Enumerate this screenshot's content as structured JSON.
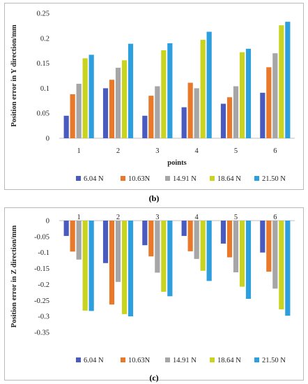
{
  "captions": {
    "b": "(b)",
    "c": "(c)"
  },
  "chart_data": [
    {
      "id": "b",
      "type": "bar",
      "categories": [
        "1",
        "2",
        "3",
        "4",
        "5",
        "6"
      ],
      "xlabel": "points",
      "ylabel": "Position error in Y direction/mm",
      "ylim": [
        0,
        0.25
      ],
      "yticks": [
        0,
        0.05,
        0.1,
        0.15,
        0.2,
        0.25
      ],
      "ytick_labels": [
        "0",
        "0.05",
        "0.1",
        "0.15",
        "0.2",
        "0.25"
      ],
      "grid": false,
      "legend_position": "bottom",
      "series": [
        {
          "name": "6.04 N",
          "color": "#4a5bbf",
          "values": [
            0.045,
            0.1,
            0.045,
            0.062,
            0.069,
            0.091
          ]
        },
        {
          "name": "10.63N",
          "color": "#e8782a",
          "values": [
            0.088,
            0.117,
            0.085,
            0.111,
            0.082,
            0.142
          ]
        },
        {
          "name": "14.91 N",
          "color": "#a6a6a6",
          "values": [
            0.109,
            0.141,
            0.104,
            0.1,
            0.104,
            0.17
          ]
        },
        {
          "name": "18.64 N",
          "color": "#c9d420",
          "values": [
            0.16,
            0.156,
            0.176,
            0.197,
            0.172,
            0.226
          ]
        },
        {
          "name": "21.50 N",
          "color": "#2e9fde",
          "values": [
            0.167,
            0.189,
            0.19,
            0.213,
            0.179,
            0.233
          ]
        }
      ]
    },
    {
      "id": "c",
      "type": "bar",
      "categories": [
        "1",
        "2",
        "3",
        "4",
        "5",
        "6"
      ],
      "xlabel": "",
      "ylabel": "Position error in Z direction/mm",
      "ylim": [
        -0.35,
        0
      ],
      "yticks": [
        0,
        -0.05,
        -0.1,
        -0.15,
        -0.2,
        -0.25,
        -0.3,
        -0.35
      ],
      "ytick_labels": [
        "0",
        "-0.05",
        "-0.1",
        "-0.15",
        "-0.2",
        "-0.25",
        "-0.3",
        "-0.35"
      ],
      "grid": false,
      "legend_position": "bottom",
      "series": [
        {
          "name": "6.04 N",
          "color": "#4a5bbf",
          "values": [
            -0.048,
            -0.133,
            -0.077,
            -0.048,
            -0.072,
            -0.1
          ]
        },
        {
          "name": "10.63N",
          "color": "#e8782a",
          "values": [
            -0.097,
            -0.263,
            -0.112,
            -0.096,
            -0.115,
            -0.16
          ]
        },
        {
          "name": "14.91 N",
          "color": "#a6a6a6",
          "values": [
            -0.122,
            -0.192,
            -0.163,
            -0.12,
            -0.162,
            -0.213
          ]
        },
        {
          "name": "18.64 N",
          "color": "#c9d420",
          "values": [
            -0.282,
            -0.293,
            -0.223,
            -0.157,
            -0.207,
            -0.278
          ]
        },
        {
          "name": "21.50 N",
          "color": "#2e9fde",
          "values": [
            -0.283,
            -0.3,
            -0.237,
            -0.189,
            -0.245,
            -0.298
          ]
        }
      ]
    }
  ]
}
